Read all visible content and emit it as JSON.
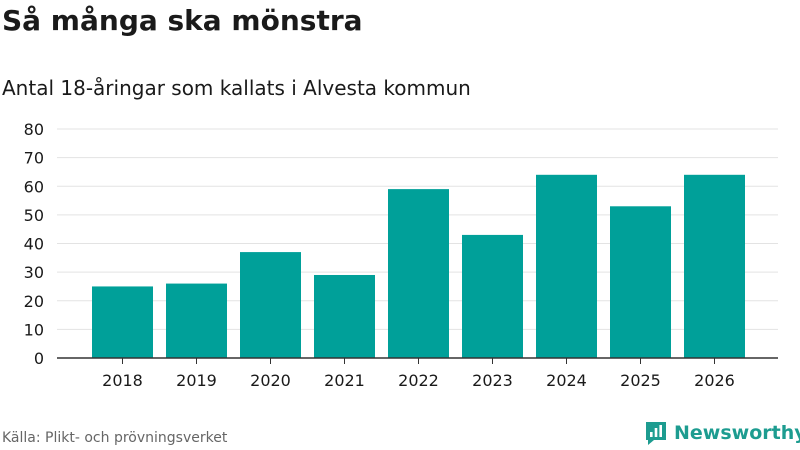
{
  "header": {
    "title": "Så många ska mönstra",
    "subtitle": "Antal 18-åringar som kallats i Alvesta kommun"
  },
  "footer": {
    "source": "Källa: Plikt- och prövningsverket",
    "brand": "Newsworthy"
  },
  "colors": {
    "bar": "#00a099",
    "grid": "#e3e3e3",
    "axis": "#333333",
    "brand": "#1d9c90"
  },
  "chart_data": {
    "type": "bar",
    "title": "Så många ska mönstra",
    "subtitle": "Antal 18-åringar som kallats i Alvesta kommun",
    "xlabel": "",
    "ylabel": "",
    "categories": [
      "2018",
      "2019",
      "2020",
      "2021",
      "2022",
      "2023",
      "2024",
      "2025",
      "2026"
    ],
    "values": [
      25,
      26,
      37,
      29,
      59,
      43,
      64,
      53,
      64
    ],
    "ylim": [
      0,
      80
    ],
    "yticks": [
      0,
      10,
      20,
      30,
      40,
      50,
      60,
      70,
      80
    ],
    "grid": true
  }
}
